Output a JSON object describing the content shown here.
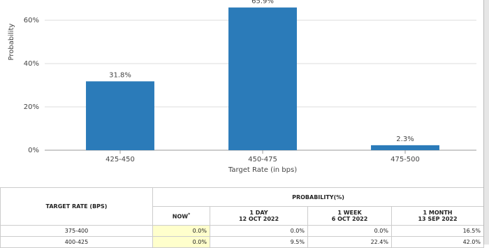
{
  "chart_data": {
    "type": "bar",
    "x_label": "Target Rate (in bps)",
    "y_label": "Probability",
    "categories": [
      "425-450",
      "450-475",
      "475-500"
    ],
    "values": [
      31.8,
      65.9,
      2.3
    ],
    "value_labels": [
      "31.8%",
      "65.9%",
      "2.3%"
    ],
    "color": "#2b7bb9",
    "ylim": [
      0,
      70
    ],
    "yticks": [
      {
        "value": 0,
        "label": "0%"
      },
      {
        "value": 20,
        "label": "20%"
      },
      {
        "value": 40,
        "label": "40%"
      },
      {
        "value": 60,
        "label": "60%"
      }
    ],
    "grid": true
  },
  "table": {
    "corner": "TARGET RATE (BPS)",
    "group": "PROBABILITY(%)",
    "columns": [
      {
        "label": "NOW",
        "mark": "*"
      },
      {
        "label": "1 DAY",
        "date": "12 OCT 2022"
      },
      {
        "label": "1 WEEK",
        "date": "6 OCT 2022"
      },
      {
        "label": "1 MONTH",
        "date": "13 SEP 2022"
      }
    ],
    "rows": [
      [
        "375-400",
        "0.0%",
        "0.0%",
        "0.0%",
        "16.5%"
      ],
      [
        "400-425",
        "0.0%",
        "9.5%",
        "22.4%",
        "42.0%"
      ]
    ]
  }
}
